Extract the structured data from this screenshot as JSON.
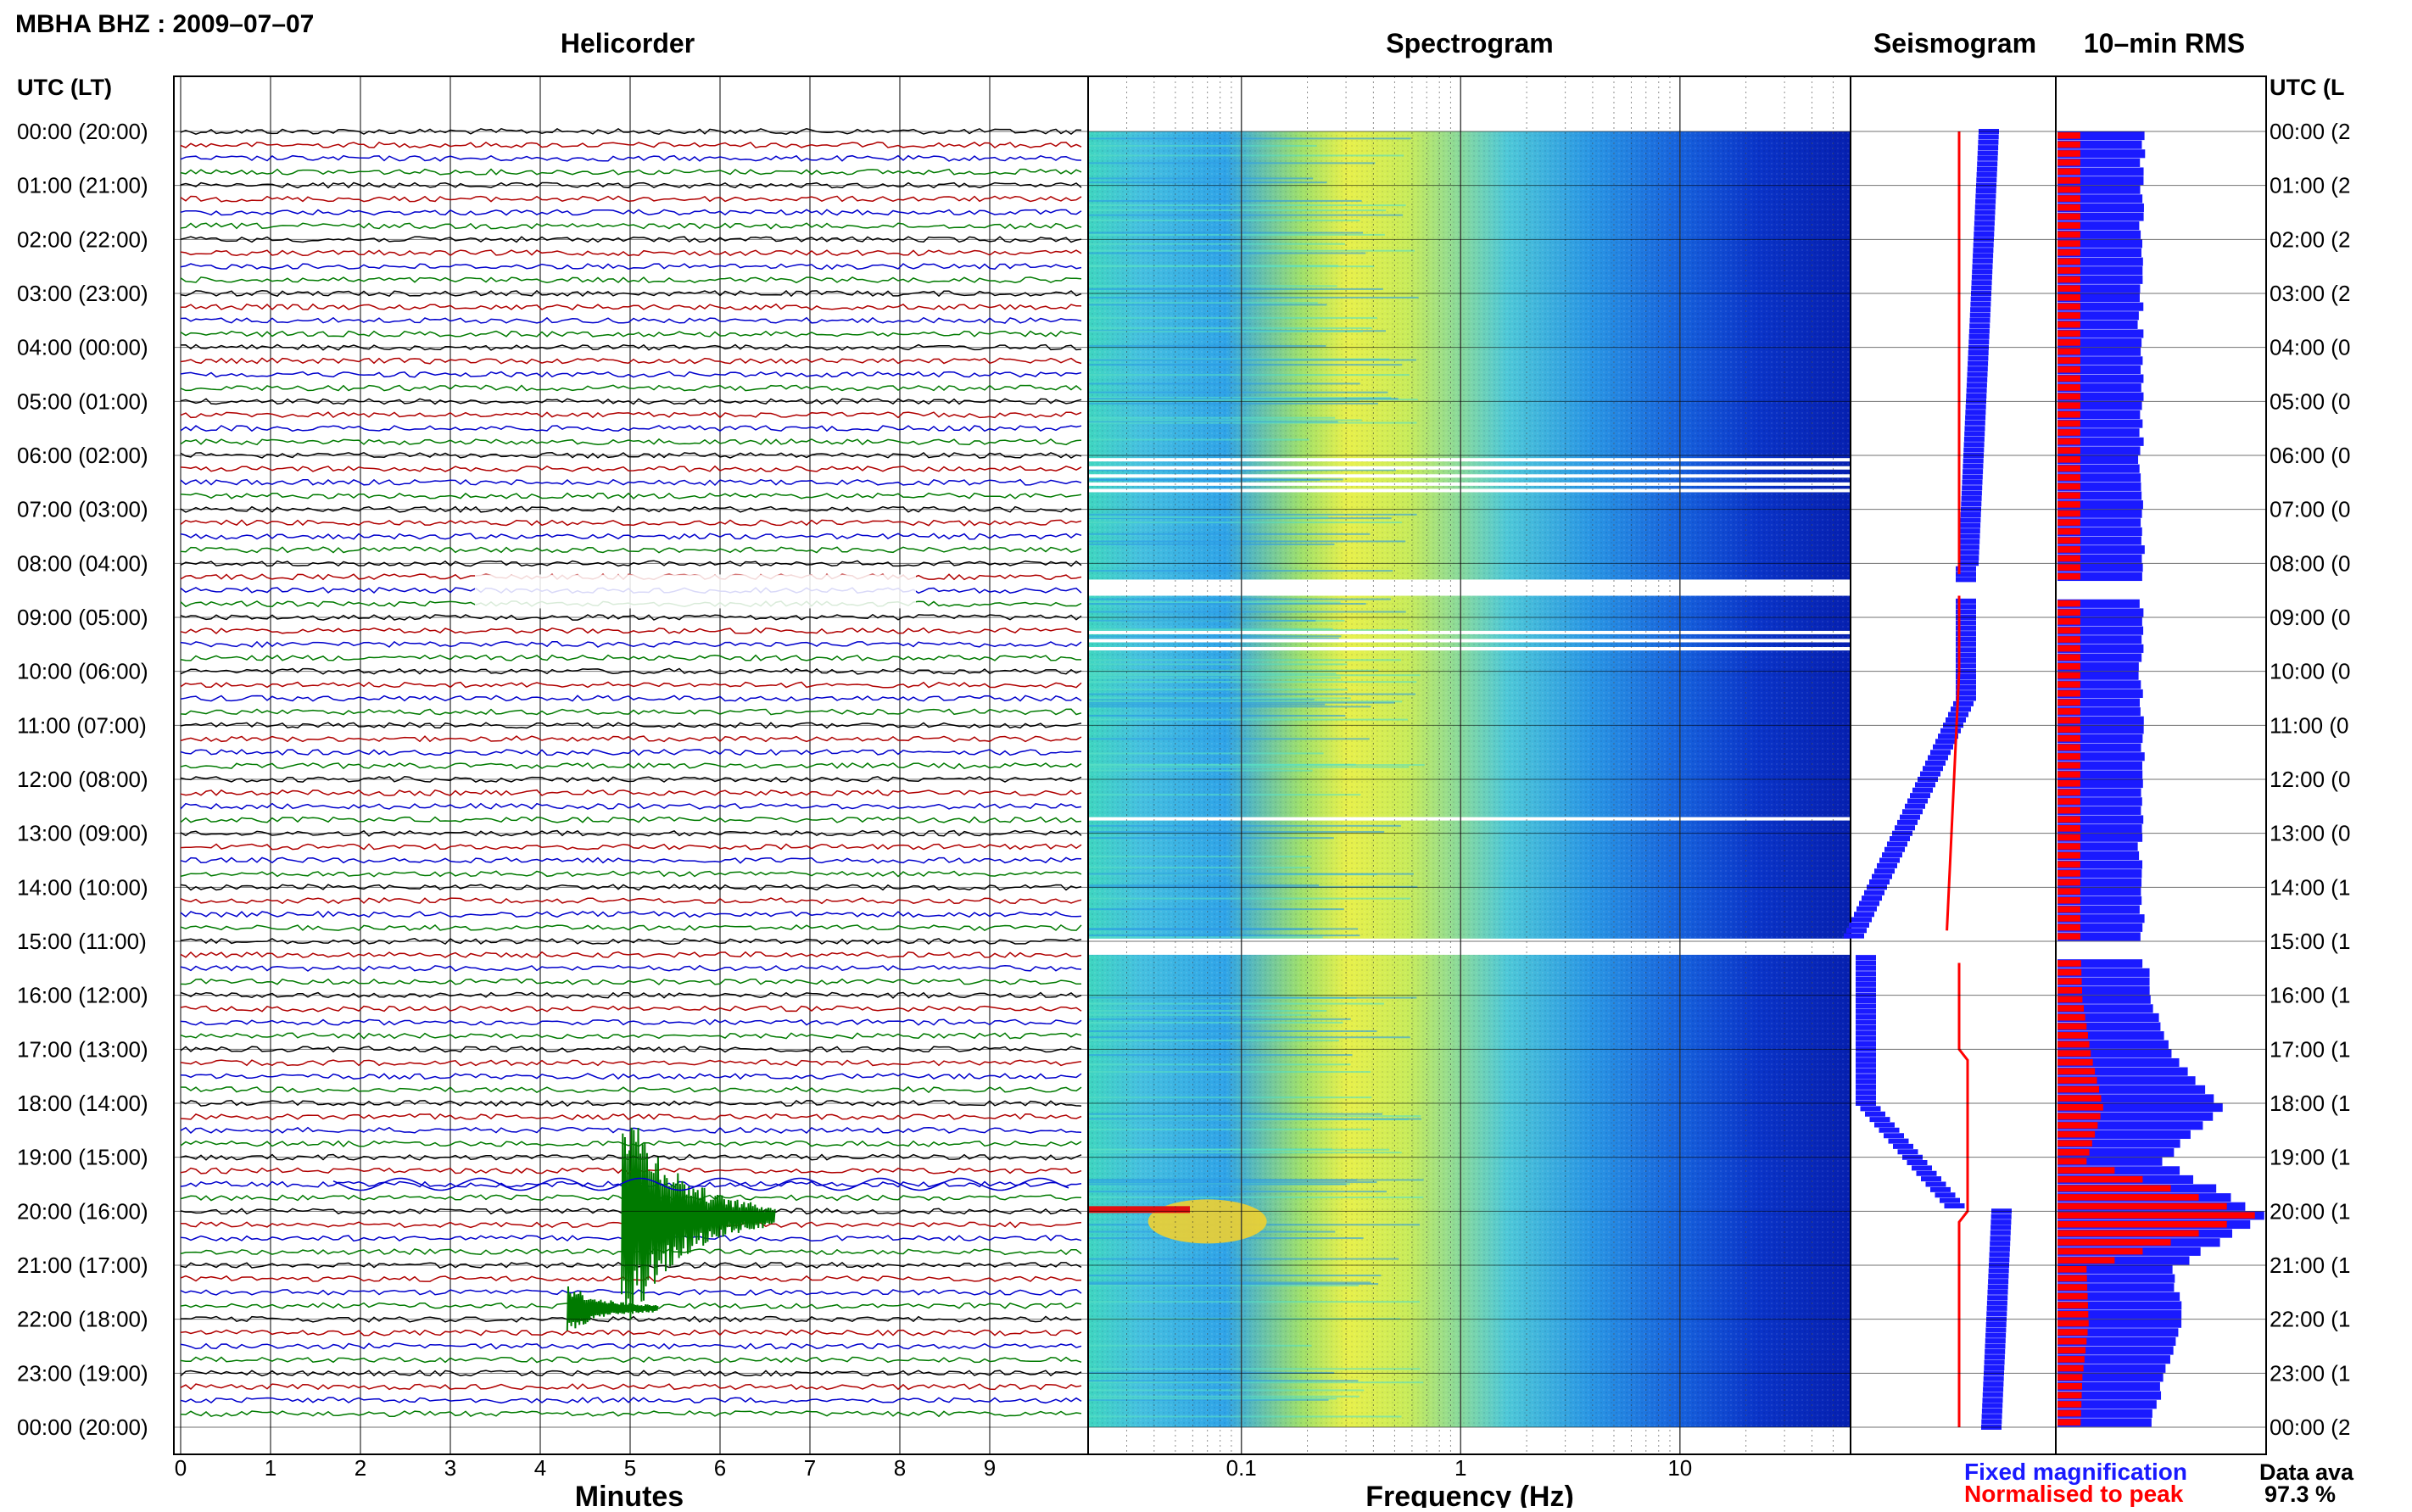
{
  "station_title": "MBHA BHZ : 2009–07–07",
  "panels": {
    "helicorder_title": "Helicorder",
    "spectrogram_title": "Spectrogram",
    "seismogram_title": "Seismogram",
    "rms_title": "10–min RMS"
  },
  "axes": {
    "left_header": "UTC (LT)",
    "right_header": "UTC (L",
    "minutes_label": "Minutes",
    "frequency_label": "Frequency (Hz)"
  },
  "time_labels_left": [
    "00:00 (20:00)",
    "01:00 (21:00)",
    "02:00 (22:00)",
    "03:00 (23:00)",
    "04:00 (00:00)",
    "05:00 (01:00)",
    "06:00 (02:00)",
    "07:00 (03:00)",
    "08:00 (04:00)",
    "09:00 (05:00)",
    "10:00 (06:00)",
    "11:00 (07:00)",
    "12:00 (08:00)",
    "13:00 (09:00)",
    "14:00 (10:00)",
    "15:00 (11:00)",
    "16:00 (12:00)",
    "17:00 (13:00)",
    "18:00 (14:00)",
    "19:00 (15:00)",
    "20:00 (16:00)",
    "21:00 (17:00)",
    "22:00 (18:00)",
    "23:00 (19:00)",
    "00:00 (20:00)"
  ],
  "time_labels_right": [
    "00:00 (2",
    "01:00 (2",
    "02:00 (2",
    "03:00 (2",
    "04:00 (0",
    "05:00 (0",
    "06:00 (0",
    "07:00 (0",
    "08:00 (0",
    "09:00 (0",
    "10:00 (0",
    "11:00 (0",
    "12:00 (0",
    "13:00 (0",
    "14:00 (1",
    "15:00 (1",
    "16:00 (1",
    "17:00 (1",
    "18:00 (1",
    "19:00 (1",
    "20:00 (1",
    "21:00 (1",
    "22:00 (1",
    "23:00 (1",
    "00:00 (2"
  ],
  "minute_ticks": [
    "0",
    "1",
    "2",
    "3",
    "4",
    "5",
    "6",
    "7",
    "8",
    "9"
  ],
  "frequency_ticks": [
    "0.1",
    "1",
    "10"
  ],
  "legend": {
    "fixed": "Fixed magnification",
    "normalised": "Normalised to peak"
  },
  "data_availability": {
    "label": "Data ava",
    "value": "97.3 %"
  },
  "colors": {
    "trace_cycle": [
      "#000000",
      "#b00000",
      "#0000cc",
      "#007a00"
    ],
    "fixed_magnification": "#1a1aff",
    "normalised_to_peak": "#ff0000"
  },
  "chart_data": {
    "type": "heatmap",
    "date": "2009-07-07",
    "station": "MBHA",
    "channel": "BHZ",
    "x_minutes_range": [
      0,
      10
    ],
    "frequency_range_hz": [
      0.02,
      60
    ],
    "frequency_scale": "log",
    "time_range_hours_utc": [
      0,
      24
    ],
    "gap_hours_utc": [
      [
        8.3,
        8.6
      ],
      [
        14.95,
        15.25
      ]
    ],
    "events": [
      {
        "type": "earthquake",
        "time_utc_hour": 20.3,
        "minute": 5,
        "peak_frequency_hz": 0.07
      },
      {
        "type": "earthquake",
        "time_utc_hour": 21.8,
        "minute": 4.3
      }
    ],
    "rms_fixed_relative": [
      0.42,
      0.4,
      0.41,
      0.4,
      0.4,
      0.41,
      0.4,
      0.4,
      0.41,
      0.41,
      0.4,
      0.41,
      0.41,
      0.4,
      0.4,
      0.41,
      0.45,
      0.55,
      0.78,
      0.5,
      1.0,
      0.55,
      0.6,
      0.5,
      0.45
    ],
    "rms_normalised_relative": [
      0.11,
      0.11,
      0.11,
      0.11,
      0.11,
      0.11,
      0.11,
      0.11,
      0.11,
      0.11,
      0.11,
      0.11,
      0.11,
      0.11,
      0.11,
      0.11,
      0.12,
      0.16,
      0.22,
      0.14,
      0.95,
      0.14,
      0.15,
      0.12,
      0.11
    ],
    "data_availability_percent": 97.3
  }
}
